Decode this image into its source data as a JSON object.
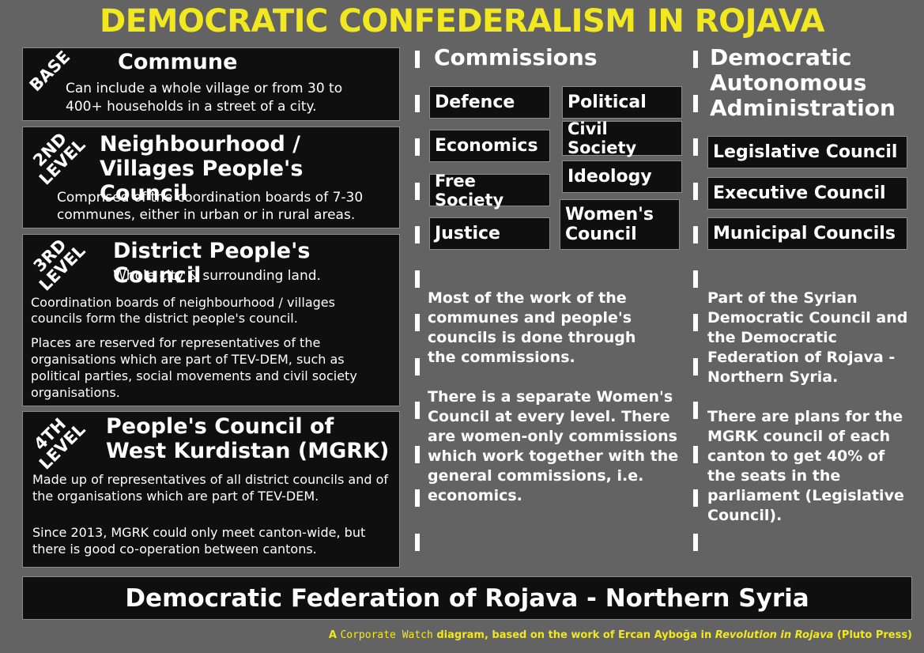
{
  "title": "DEMOCRATIC CONFEDERALISM IN ROJAVA",
  "levels": [
    {
      "tag_lines": [
        "BASE"
      ],
      "heading": "Commune",
      "texts": [
        "Can include a whole village or from 30 to 400+ households in a street of a city."
      ]
    },
    {
      "tag_lines": [
        "2ND",
        "LEVEL"
      ],
      "heading": "Neighbourhood / Villages People's Council",
      "texts": [
        "Comprised of the coordination boards of 7-30 communes, either in urban or in rural areas."
      ]
    },
    {
      "tag_lines": [
        "3RD",
        "LEVEL"
      ],
      "heading": "District People's Council",
      "subheading": "Whole city & surrounding land.",
      "texts": [
        "Coordination boards of neighbourhood / villages councils form the district people's council.",
        "Places are reserved for representatives of the organisations which are part of TEV-DEM, such as political parties, social movements and civil society organisations."
      ]
    },
    {
      "tag_lines": [
        "4TH",
        "LEVEL"
      ],
      "heading": "People's Council of West Kurdistan (MGRK)",
      "texts": [
        "Made up of representatives of all district councils and of the organisations which are part of TEV-DEM.",
        "Since 2013, MGRK could only meet canton-wide, but there is good co-operation between cantons."
      ]
    }
  ],
  "commissions": {
    "heading": "Commissions",
    "items": [
      "Defence",
      "Political",
      "Economics",
      "Civil Society",
      "Free Society",
      "Ideology",
      "Justice",
      "Women's Council"
    ],
    "paragraphs": [
      "Most of the work of the communes and people's councils is done through the commissions.",
      "There is a separate Women's Council at every level. There are women-only commissions which work together with the general commissions, i.e. economics."
    ]
  },
  "administration": {
    "heading": "Democratic Autonomous Administration",
    "items": [
      "Legislative Council",
      "Executive Council",
      "Municipal Councils"
    ],
    "paragraphs": [
      "Part of the Syrian Democratic Council and the Democratic Federation of Rojava - Northern Syria.",
      "There are plans for the MGRK council of each canton to get 40% of the seats in the parliament (Legislative Council)."
    ]
  },
  "footer": "Democratic Federation of Rojava - Northern Syria",
  "credit": {
    "prefix": "A",
    "org": "Corporate Watch",
    "mid": "diagram, based on the work of Ercan Ayboğa in",
    "book": "Revolution in Rojava",
    "suffix": "(Pluto Press)"
  }
}
